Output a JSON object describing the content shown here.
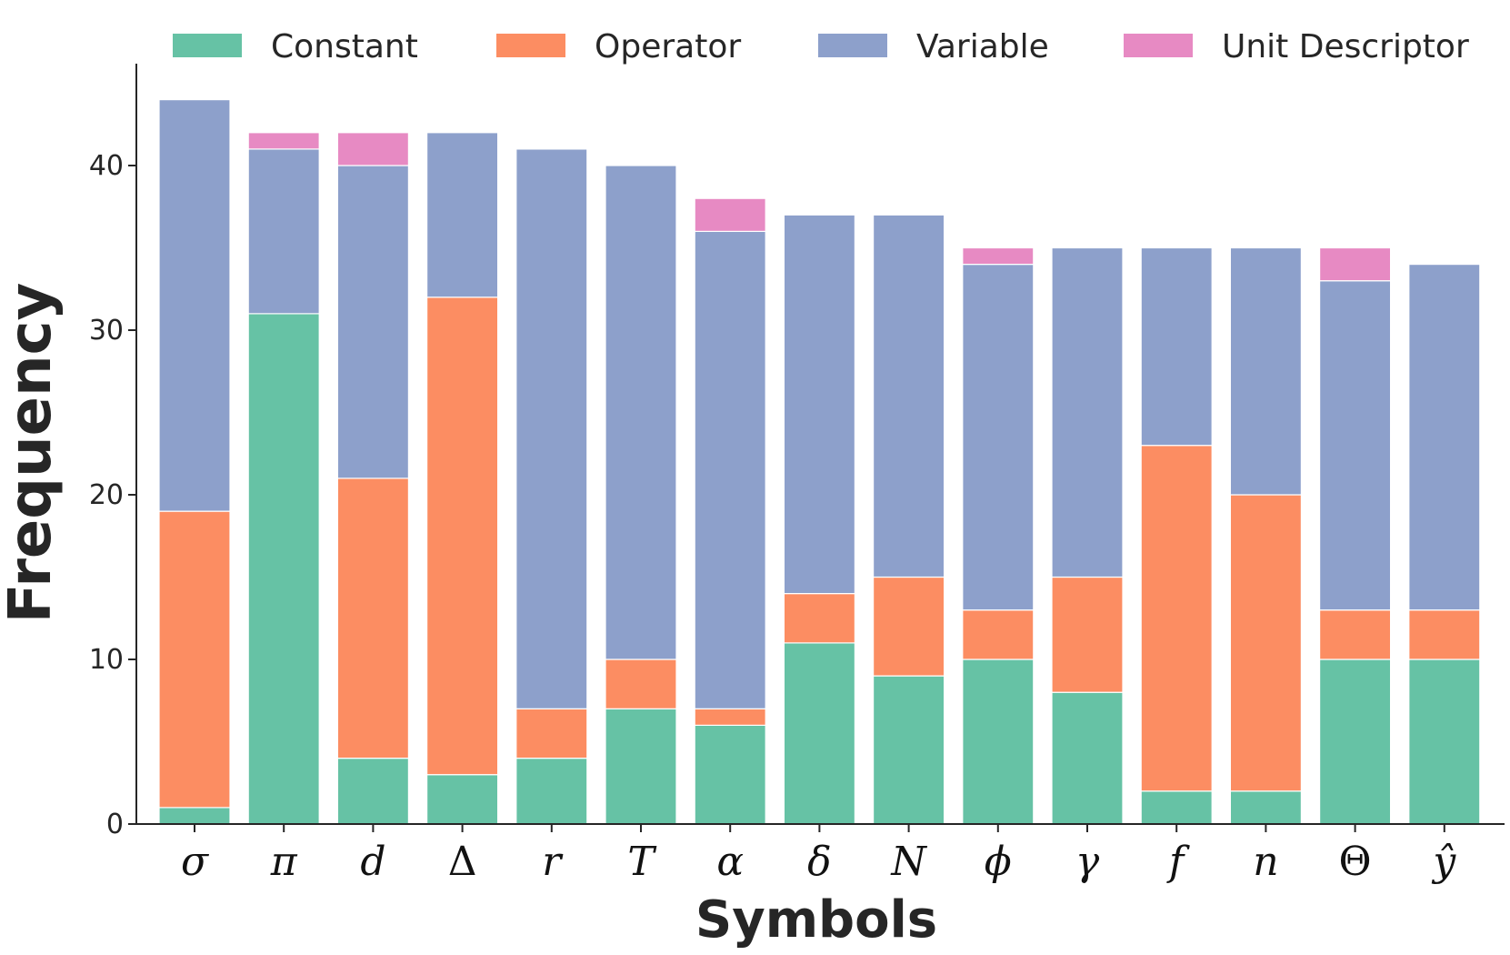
{
  "chart_data": {
    "type": "bar",
    "stacked": true,
    "title": "",
    "xlabel": "Symbols",
    "ylabel": "Frequency",
    "ylim": [
      0,
      46
    ],
    "yticks": [
      0,
      10,
      20,
      30,
      40
    ],
    "grid": false,
    "legend_position": "top",
    "categories": [
      "σ",
      "π",
      "d",
      "Δ",
      "r",
      "T",
      "α",
      "δ",
      "N",
      "ϕ",
      "γ",
      "f",
      "n",
      "Θ",
      "ŷ"
    ],
    "upright_categories": [
      "Δ",
      "Θ"
    ],
    "series": [
      {
        "name": "Constant",
        "color": "#66c2a5",
        "values": [
          1,
          31,
          4,
          3,
          4,
          7,
          6,
          11,
          9,
          10,
          8,
          2,
          2,
          10,
          10
        ]
      },
      {
        "name": "Operator",
        "color": "#fc8d62",
        "values": [
          18,
          0,
          17,
          29,
          3,
          3,
          1,
          3,
          6,
          3,
          7,
          21,
          18,
          3,
          3
        ]
      },
      {
        "name": "Variable",
        "color": "#8da0cb",
        "values": [
          25,
          10,
          19,
          10,
          34,
          30,
          29,
          23,
          22,
          21,
          20,
          12,
          15,
          20,
          21
        ]
      },
      {
        "name": "Unit Descriptor",
        "color": "#e78ac3",
        "values": [
          0,
          1,
          2,
          0,
          0,
          0,
          2,
          0,
          0,
          1,
          0,
          0,
          0,
          2,
          0
        ]
      }
    ]
  }
}
